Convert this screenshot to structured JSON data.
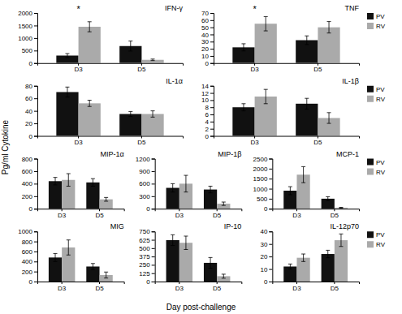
{
  "xlabel": "Day post-challenge",
  "ylabel": "Pg/ml Cytokine",
  "chart_data": [
    {
      "type": "bar",
      "title": "IFN-γ",
      "categories": [
        "D3",
        "D5"
      ],
      "series": [
        {
          "name": "PV",
          "color": "#111111",
          "values": [
            300,
            680
          ],
          "errors": [
            80,
            200
          ]
        },
        {
          "name": "RV",
          "color": "#aaaaaa",
          "values": [
            1450,
            130
          ],
          "errors": [
            200,
            30
          ]
        }
      ],
      "ylim": [
        0,
        2000
      ],
      "yticks": [
        0,
        500,
        1000,
        1500,
        2000
      ],
      "annotations": [
        "*"
      ]
    },
    {
      "type": "bar",
      "title": "TNF",
      "categories": [
        "D3",
        "D5"
      ],
      "series": [
        {
          "name": "PV",
          "color": "#111111",
          "values": [
            22,
            32
          ],
          "errors": [
            5,
            6
          ]
        },
        {
          "name": "RV",
          "color": "#aaaaaa",
          "values": [
            55,
            50
          ],
          "errors": [
            10,
            8
          ]
        }
      ],
      "ylim": [
        0,
        70
      ],
      "yticks": [
        0,
        10,
        20,
        30,
        40,
        50,
        60,
        70
      ],
      "annotations": [
        "*"
      ],
      "legend": "right"
    },
    {
      "type": "bar",
      "title": "IL-1α",
      "categories": [
        "D3",
        "D5"
      ],
      "series": [
        {
          "name": "PV",
          "color": "#111111",
          "values": [
            70,
            35
          ],
          "errors": [
            8,
            4
          ]
        },
        {
          "name": "RV",
          "color": "#aaaaaa",
          "values": [
            52,
            35
          ],
          "errors": [
            5,
            5
          ]
        }
      ],
      "ylim": [
        0,
        80
      ],
      "yticks": [
        0,
        20,
        40,
        60,
        80
      ]
    },
    {
      "type": "bar",
      "title": "IL-1β",
      "categories": [
        "D3",
        "D5"
      ],
      "series": [
        {
          "name": "PV",
          "color": "#111111",
          "values": [
            8,
            9
          ],
          "errors": [
            1,
            1.5
          ]
        },
        {
          "name": "RV",
          "color": "#aaaaaa",
          "values": [
            11,
            5
          ],
          "errors": [
            2,
            1.5
          ]
        }
      ],
      "ylim": [
        0,
        14
      ],
      "yticks": [
        0,
        2,
        4,
        6,
        8,
        10,
        12,
        14
      ],
      "legend": "right"
    },
    {
      "type": "bar",
      "title": "MIP-1α",
      "categories": [
        "D3",
        "D5"
      ],
      "series": [
        {
          "name": "PV",
          "color": "#111111",
          "values": [
            440,
            420
          ],
          "errors": [
            60,
            60
          ]
        },
        {
          "name": "RV",
          "color": "#aaaaaa",
          "values": [
            460,
            150
          ],
          "errors": [
            100,
            30
          ]
        }
      ],
      "ylim": [
        0,
        800
      ],
      "yticks": [
        0,
        200,
        400,
        600,
        800
      ]
    },
    {
      "type": "bar",
      "title": "MIP-1β",
      "categories": [
        "D3",
        "D5"
      ],
      "series": [
        {
          "name": "PV",
          "color": "#111111",
          "values": [
            500,
            460
          ],
          "errors": [
            100,
            80
          ]
        },
        {
          "name": "RV",
          "color": "#aaaaaa",
          "values": [
            600,
            120
          ],
          "errors": [
            200,
            40
          ]
        }
      ],
      "ylim": [
        0,
        1200
      ],
      "yticks": [
        0,
        300,
        600,
        900,
        1200
      ]
    },
    {
      "type": "bar",
      "title": "MCP-1",
      "categories": [
        "D3",
        "D5"
      ],
      "series": [
        {
          "name": "PV",
          "color": "#111111",
          "values": [
            900,
            500
          ],
          "errors": [
            200,
            100
          ]
        },
        {
          "name": "RV",
          "color": "#aaaaaa",
          "values": [
            1700,
            50
          ],
          "errors": [
            400,
            20
          ]
        }
      ],
      "ylim": [
        0,
        2500
      ],
      "yticks": [
        0,
        500,
        1000,
        1500,
        2000,
        2500
      ],
      "legend": "right"
    },
    {
      "type": "bar",
      "title": "MIG",
      "categories": [
        "D3",
        "D5"
      ],
      "series": [
        {
          "name": "PV",
          "color": "#111111",
          "values": [
            480,
            300
          ],
          "errors": [
            80,
            60
          ]
        },
        {
          "name": "RV",
          "color": "#aaaaaa",
          "values": [
            680,
            130
          ],
          "errors": [
            150,
            60
          ]
        }
      ],
      "ylim": [
        0,
        1000
      ],
      "yticks": [
        0,
        200,
        400,
        600,
        800,
        1000
      ]
    },
    {
      "type": "bar",
      "title": "IP-10",
      "categories": [
        "D3",
        "D5"
      ],
      "series": [
        {
          "name": "PV",
          "color": "#111111",
          "values": [
            620,
            280
          ],
          "errors": [
            80,
            80
          ]
        },
        {
          "name": "RV",
          "color": "#aaaaaa",
          "values": [
            580,
            80
          ],
          "errors": [
            100,
            30
          ]
        }
      ],
      "ylim": [
        0,
        750
      ],
      "yticks": [
        0,
        125,
        250,
        375,
        500,
        625,
        750
      ]
    },
    {
      "type": "bar",
      "title": "IL-12p70",
      "categories": [
        "D3",
        "D5"
      ],
      "series": [
        {
          "name": "PV",
          "color": "#111111",
          "values": [
            12,
            22
          ],
          "errors": [
            2,
            3
          ]
        },
        {
          "name": "RV",
          "color": "#aaaaaa",
          "values": [
            19,
            33
          ],
          "errors": [
            3,
            5
          ]
        }
      ],
      "ylim": [
        0,
        40
      ],
      "yticks": [
        0,
        10,
        20,
        30,
        40
      ],
      "legend": "right"
    }
  ]
}
